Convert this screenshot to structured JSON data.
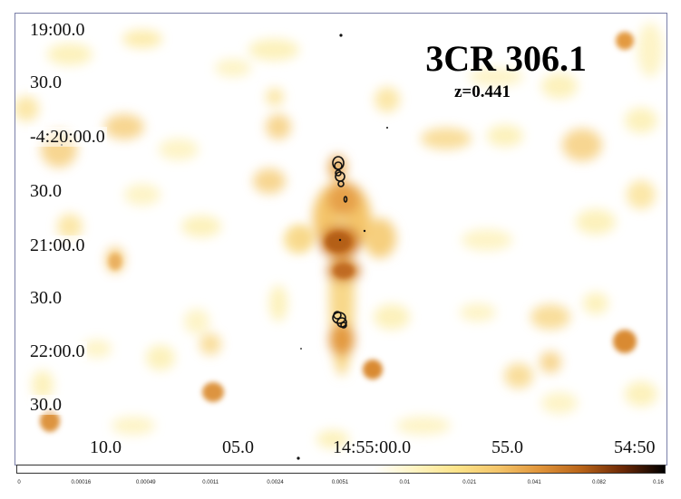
{
  "figure": {
    "title": "3CR 306.1",
    "redshift": "z=0.441"
  },
  "axes": {
    "dec_labels": [
      "19:00.0",
      "30.0",
      "-4:20:00.0",
      "30.0",
      "21:00.0",
      "30.0",
      "22:00.0",
      "30.0"
    ],
    "ra_labels": [
      "10.0",
      "05.0",
      "14:55:00.0",
      "55.0",
      "54:50"
    ]
  },
  "colorbar": {
    "ticks": [
      "0",
      "0.00016",
      "0.00049",
      "0.0011",
      "0.0024",
      "0.0051",
      "0.01",
      "0.021",
      "0.041",
      "0.082",
      "0.16"
    ],
    "colors": [
      "#ffffff",
      "#fff4c2",
      "#fce48a",
      "#f4c56a",
      "#e0943a",
      "#b86318",
      "#6b2806",
      "#000000"
    ]
  },
  "colors": {
    "frame_border": "#7a7fa8",
    "contour": "#111111"
  }
}
